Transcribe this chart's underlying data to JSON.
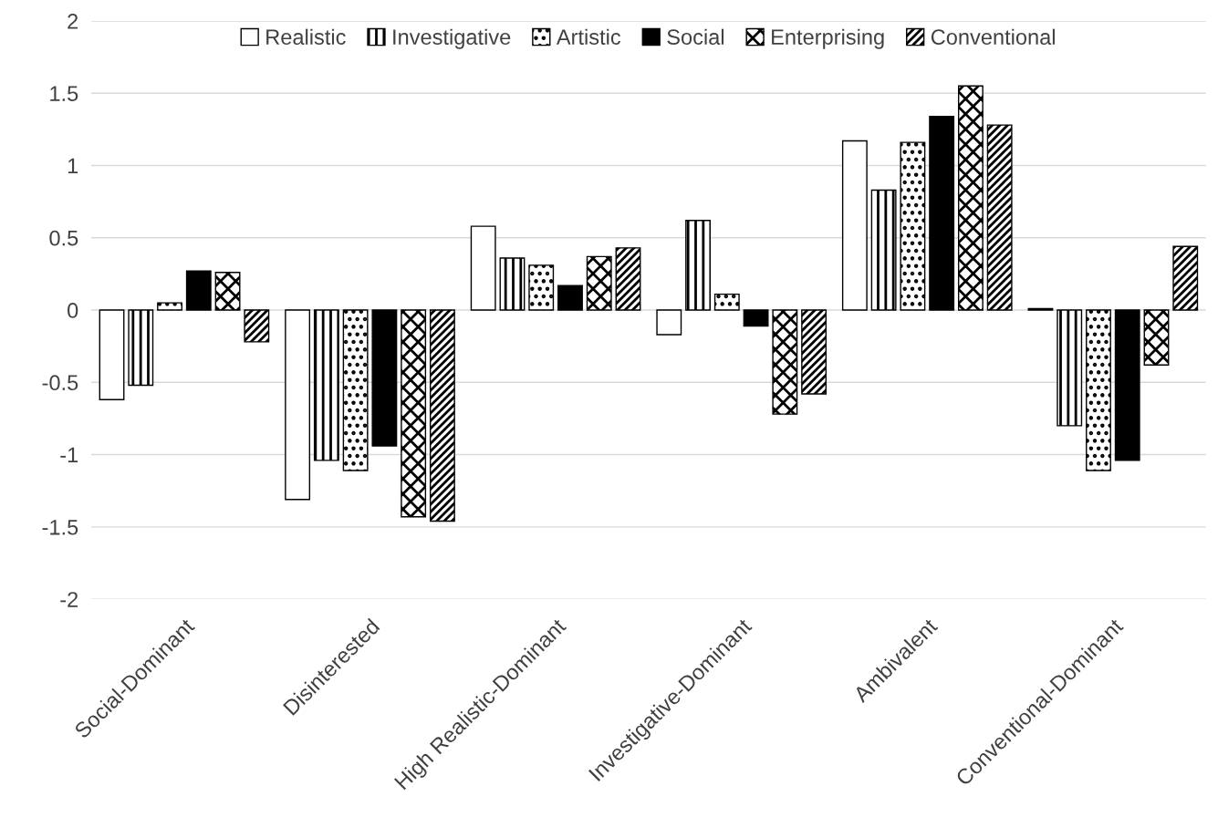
{
  "chart_data": {
    "type": "bar",
    "categories": [
      "Social-Dominant",
      "Disinterested",
      "High Realistic-Dominant",
      "Investigative-Dominant",
      "Ambivalent",
      "Conventional-Dominant"
    ],
    "series": [
      {
        "name": "Realistic",
        "color": "#ffffff",
        "values": [
          -0.62,
          -1.31,
          0.58,
          -0.17,
          1.17,
          0.01
        ]
      },
      {
        "name": "Investigative",
        "color": "#000000",
        "values": [
          -0.52,
          -1.04,
          0.36,
          0.62,
          0.83,
          -0.8
        ]
      },
      {
        "name": "Artistic",
        "color": "#000000",
        "values": [
          0.05,
          -1.11,
          0.31,
          0.11,
          1.16,
          -1.11
        ]
      },
      {
        "name": "Social",
        "color": "#000000",
        "values": [
          0.27,
          -0.94,
          0.17,
          -0.11,
          1.34,
          -1.04
        ]
      },
      {
        "name": "Enterprising",
        "color": "#000000",
        "values": [
          0.26,
          -1.43,
          0.37,
          -0.72,
          1.55,
          -0.38
        ]
      },
      {
        "name": "Conventional",
        "color": "#000000",
        "values": [
          -0.22,
          -1.46,
          0.43,
          -0.58,
          1.28,
          0.44
        ]
      }
    ],
    "ylim": [
      -2,
      2
    ],
    "yticks": [
      -2,
      -1.5,
      -1,
      -0.5,
      0,
      0.5,
      1,
      1.5,
      2
    ],
    "grid": "y",
    "legend": "top"
  }
}
